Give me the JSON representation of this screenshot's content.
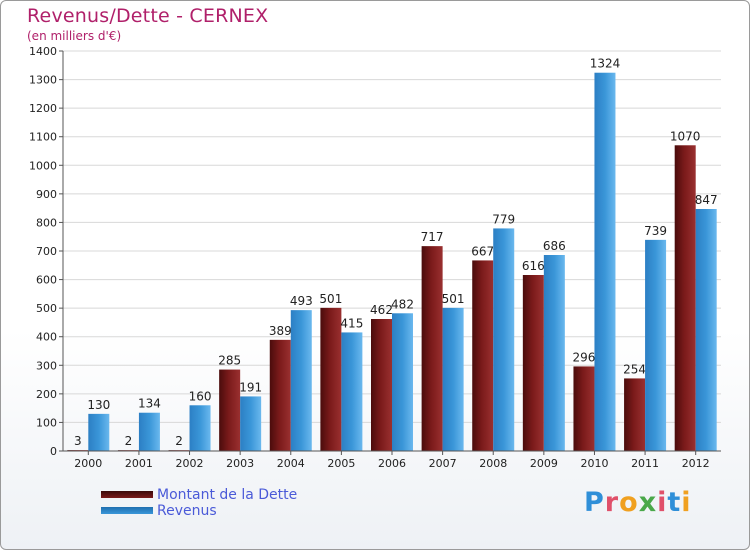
{
  "title": "Revenus/Dette - CERNEX",
  "subtitle": "(en milliers d'€)",
  "brand": {
    "letters": [
      {
        "ch": "P",
        "color": "#2f8fd8"
      },
      {
        "ch": "r",
        "color": "#e0506a"
      },
      {
        "ch": "o",
        "color": "#f0a020"
      },
      {
        "ch": "x",
        "color": "#4aa84a"
      },
      {
        "ch": "i",
        "color": "#e0506a"
      },
      {
        "ch": "t",
        "color": "#2f8fd8"
      },
      {
        "ch": "i",
        "color": "#f0a020"
      }
    ]
  },
  "colors": {
    "dette": "#7a1a1a",
    "revenus": "#3a96d8",
    "axis": "#555555",
    "grid": "#d8d8d8"
  },
  "chart_data": {
    "type": "bar",
    "title": "Revenus/Dette - CERNEX",
    "ylabel": "(en milliers d'€)",
    "xlabel": "",
    "categories": [
      "2000",
      "2001",
      "2002",
      "2003",
      "2004",
      "2005",
      "2006",
      "2007",
      "2008",
      "2009",
      "2010",
      "2011",
      "2012"
    ],
    "series": [
      {
        "name": "Montant de la Dette",
        "values": [
          3,
          2,
          2,
          285,
          389,
          501,
          462,
          717,
          667,
          616,
          296,
          254,
          1070
        ]
      },
      {
        "name": "Revenus",
        "values": [
          130,
          134,
          160,
          191,
          493,
          415,
          482,
          501,
          779,
          686,
          1324,
          739,
          847
        ]
      }
    ],
    "ylim": [
      0,
      1400
    ],
    "yticks": [
      0,
      100,
      200,
      300,
      400,
      500,
      600,
      700,
      800,
      900,
      1000,
      1100,
      1200,
      1300,
      1400
    ],
    "grid": true,
    "legend_position": "bottom-left"
  }
}
